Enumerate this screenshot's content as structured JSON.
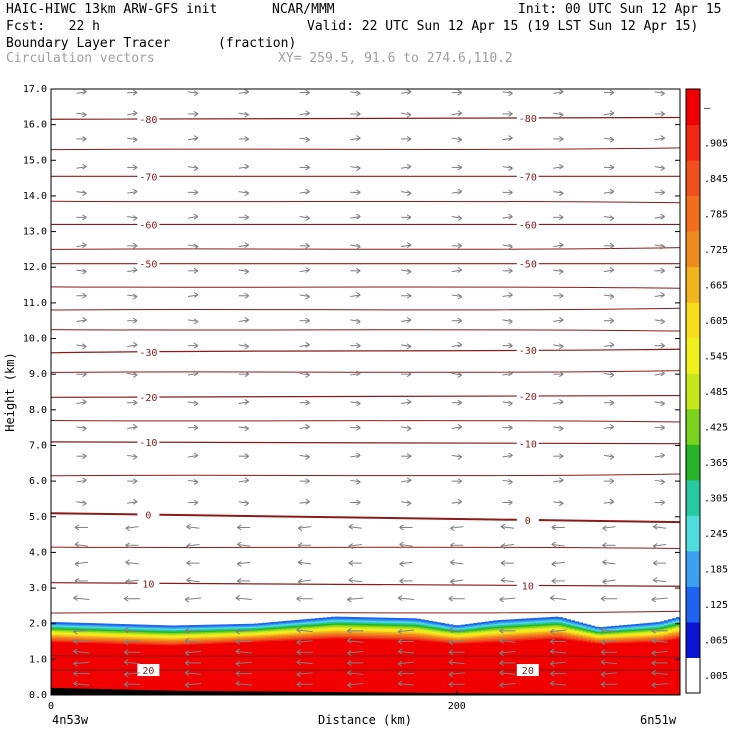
{
  "header": {
    "model": "HAIC-HIWC 13km ARW-GFS init",
    "org": "NCAR/MMM",
    "init": "Init: 00 UTC Sun 12 Apr 15",
    "fcst": "Fcst:   22 h",
    "valid": "Valid: 22 UTC Sun 12 Apr 15 (19 LST Sun 12 Apr 15)",
    "field1": "Boundary Layer Tracer",
    "field1_units": "(fraction)",
    "field2": "Circulation vectors",
    "xy": "XY= 259.5, 91.6 to 274.6,110.2"
  },
  "chart_data": {
    "type": "heatmap",
    "ylabel": "Height (km)",
    "xlabel": "Distance (km)",
    "x_endpoints": {
      "left": "4n53w",
      "right": "6n51w"
    },
    "xlim": [
      0,
      310
    ],
    "ylim": [
      0,
      17
    ],
    "x_ticks": [
      0,
      200
    ],
    "y_ticks": [
      "0.0",
      "1.0",
      "2.0",
      "3.0",
      "4.0",
      "5.0",
      "6.0",
      "7.0",
      "8.0",
      "9.0",
      "10.0",
      "11.0",
      "12.0",
      "13.0",
      "14.0",
      "15.0",
      "16.0",
      "17.0"
    ],
    "colorbar": {
      "labels": [
        ".005",
        ".065",
        ".125",
        ".185",
        ".245",
        ".305",
        ".365",
        ".425",
        ".485",
        ".545",
        ".605",
        ".665",
        ".725",
        ".785",
        ".845",
        ".905",
        "–"
      ],
      "colors": [
        "#ffffff",
        "#0a14d2",
        "#1e64f0",
        "#3ca0f0",
        "#50dcdc",
        "#28c8a0",
        "#28b428",
        "#78d21e",
        "#c8e61e",
        "#f0f01e",
        "#fadc1e",
        "#f0b41e",
        "#f08c1e",
        "#f06e1e",
        "#f0501e",
        "#f02814",
        "#f00000"
      ]
    },
    "tracer_profile": {
      "x": [
        0,
        30,
        60,
        100,
        140,
        180,
        200,
        220,
        250,
        270,
        300,
        310
      ],
      "top_km": [
        2.05,
        2.0,
        1.95,
        2.0,
        2.2,
        2.15,
        1.95,
        2.1,
        2.2,
        1.9,
        2.05,
        2.2
      ],
      "full_km": [
        1.5,
        1.45,
        1.4,
        1.5,
        1.6,
        1.55,
        1.45,
        1.5,
        1.6,
        1.45,
        1.5,
        1.6
      ]
    },
    "temperature_contours": [
      {
        "value": 20,
        "label": "20",
        "y_left": 0.7,
        "y_right": 0.7
      },
      {
        "value": 10,
        "label": "10",
        "y_left": 3.15,
        "y_right": 3.05
      },
      {
        "value": 0,
        "label": "0",
        "y_left": 5.1,
        "y_right": 4.85
      },
      {
        "value": -10,
        "label": "-10",
        "y_left": 7.1,
        "y_right": 7.05
      },
      {
        "value": -20,
        "label": "-20",
        "y_left": 8.35,
        "y_right": 8.4
      },
      {
        "value": -30,
        "label": "-30",
        "y_left": 9.6,
        "y_right": 9.7
      },
      {
        "value": -50,
        "label": "-50",
        "y_left": 12.1,
        "y_right": 12.1
      },
      {
        "value": -60,
        "label": "-60",
        "y_left": 13.2,
        "y_right": 13.2
      },
      {
        "value": -70,
        "label": "-70",
        "y_left": 14.55,
        "y_right": 14.55
      },
      {
        "value": -80,
        "label": "-80",
        "y_left": 16.15,
        "y_right": 16.2
      }
    ],
    "temperature_unlabeled_km": [
      1.1,
      2.3,
      4.15,
      6.15,
      7.7,
      9.05,
      10.25,
      10.8,
      11.45,
      12.5,
      13.85,
      15.3
    ],
    "wind_vectors": {
      "columns_km": [
        15,
        40,
        70,
        95,
        125,
        150,
        175,
        200,
        225,
        250,
        275,
        300
      ],
      "levels_km": [
        0.3,
        0.6,
        0.9,
        1.2,
        1.5,
        1.8,
        2.7,
        3.2,
        3.7,
        4.2,
        4.7,
        5.4,
        6.0,
        6.7,
        7.5,
        8.2,
        9.0,
        9.8,
        10.5,
        11.2,
        11.9,
        12.6,
        13.4,
        14.1,
        14.8,
        15.6,
        16.3,
        16.9
      ]
    }
  }
}
